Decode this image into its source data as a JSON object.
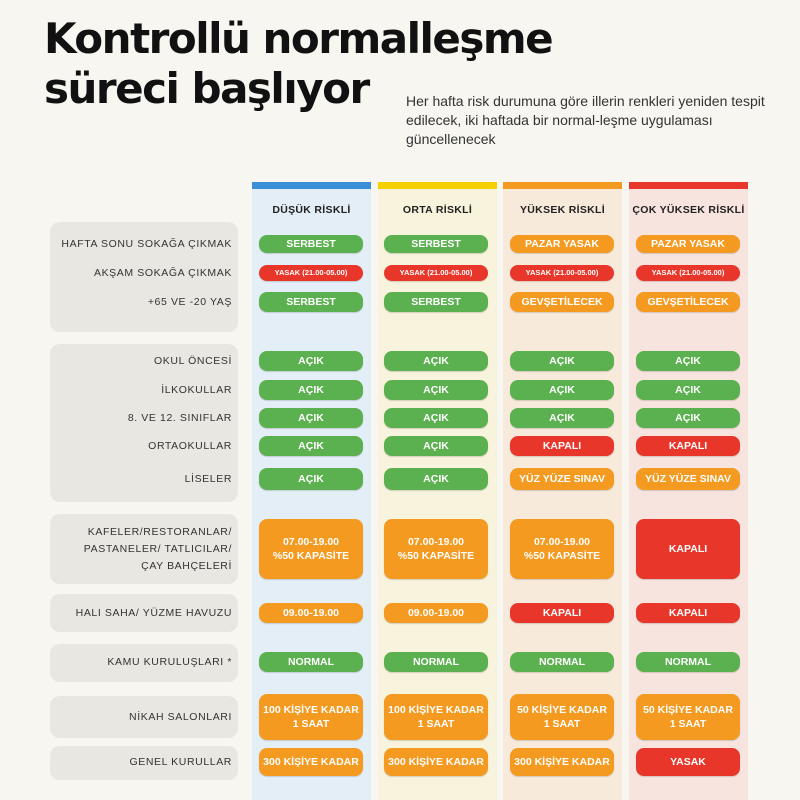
{
  "title_line1": "Kontrollü normalleşme",
  "title_line2": "süreci başlıyor",
  "subtitle": "Her hafta risk durumuna göre illerin renkleri yeniden tespit edilecek, iki haftada bir normal-leşme uygulaması güncellenecek",
  "colors": {
    "blue_bar": "#3a8fd8",
    "yellow_bar": "#f4d000",
    "orange_bar": "#f59a21",
    "red_bar": "#e8362b",
    "green_pill": "#5bb04f",
    "orange_pill": "#f59a21",
    "red_pill": "#e8362b"
  },
  "columns": [
    "DÜŞÜK RİSKLİ",
    "ORTA RİSKLİ",
    "YÜKSEK RİSKLİ",
    "ÇOK YÜKSEK RİSKLİ"
  ],
  "rows": [
    {
      "label": "HAFTA SONU SOKAĞA ÇIKMAK",
      "cells": [
        {
          "text": "SERBEST",
          "color": "green"
        },
        {
          "text": "SERBEST",
          "color": "green"
        },
        {
          "text": "PAZAR YASAK",
          "color": "orange"
        },
        {
          "text": "PAZAR YASAK",
          "color": "orange"
        }
      ]
    },
    {
      "label": "AKŞAM SOKAĞA ÇIKMAK",
      "cells": [
        {
          "text": "YASAK (21.00-05.00)",
          "color": "red"
        },
        {
          "text": "YASAK (21.00-05.00)",
          "color": "red"
        },
        {
          "text": "YASAK (21.00-05.00)",
          "color": "red"
        },
        {
          "text": "YASAK (21.00-05.00)",
          "color": "red"
        }
      ]
    },
    {
      "label": "+65 VE -20 YAŞ",
      "cells": [
        {
          "text": "SERBEST",
          "color": "green"
        },
        {
          "text": "SERBEST",
          "color": "green"
        },
        {
          "text": "GEVŞETİLECEK",
          "color": "orange"
        },
        {
          "text": "GEVŞETİLECEK",
          "color": "orange"
        }
      ]
    },
    {
      "label": "OKUL ÖNCESİ",
      "cells": [
        {
          "text": "AÇIK",
          "color": "green"
        },
        {
          "text": "AÇIK",
          "color": "green"
        },
        {
          "text": "AÇIK",
          "color": "green"
        },
        {
          "text": "AÇIK",
          "color": "green"
        }
      ]
    },
    {
      "label": "İLKOKULLAR",
      "cells": [
        {
          "text": "AÇIK",
          "color": "green"
        },
        {
          "text": "AÇIK",
          "color": "green"
        },
        {
          "text": "AÇIK",
          "color": "green"
        },
        {
          "text": "AÇIK",
          "color": "green"
        }
      ]
    },
    {
      "label": "8. VE 12. SINIFLAR",
      "cells": [
        {
          "text": "AÇIK",
          "color": "green"
        },
        {
          "text": "AÇIK",
          "color": "green"
        },
        {
          "text": "AÇIK",
          "color": "green"
        },
        {
          "text": "AÇIK",
          "color": "green"
        }
      ]
    },
    {
      "label": "ORTAOKULLAR",
      "cells": [
        {
          "text": "AÇIK",
          "color": "green"
        },
        {
          "text": "AÇIK",
          "color": "green"
        },
        {
          "text": "KAPALI",
          "color": "red"
        },
        {
          "text": "KAPALI",
          "color": "red"
        }
      ]
    },
    {
      "label": "LİSELER",
      "cells": [
        {
          "text": "AÇIK",
          "color": "green"
        },
        {
          "text": "AÇIK",
          "color": "green"
        },
        {
          "text": "YÜZ YÜZE SINAV",
          "color": "orange"
        },
        {
          "text": "YÜZ YÜZE SINAV",
          "color": "orange"
        }
      ]
    },
    {
      "label": "KAFELER/RESTORANLAR/\nPASTANELER/ TATLICILAR/\nÇAY BAHÇELERİ",
      "cells": [
        {
          "text": "07.00-19.00\n%50 KAPASİTE",
          "color": "orange"
        },
        {
          "text": "07.00-19.00\n%50 KAPASİTE",
          "color": "orange"
        },
        {
          "text": "07.00-19.00\n%50 KAPASİTE",
          "color": "orange"
        },
        {
          "text": "KAPALI",
          "color": "red"
        }
      ]
    },
    {
      "label": "HALI SAHA/ YÜZME HAVUZU",
      "cells": [
        {
          "text": "09.00-19.00",
          "color": "orange"
        },
        {
          "text": "09.00-19.00",
          "color": "orange"
        },
        {
          "text": "KAPALI",
          "color": "red"
        },
        {
          "text": "KAPALI",
          "color": "red"
        }
      ]
    },
    {
      "label": "KAMU KURULUŞLARI *",
      "cells": [
        {
          "text": "NORMAL",
          "color": "green"
        },
        {
          "text": "NORMAL",
          "color": "green"
        },
        {
          "text": "NORMAL",
          "color": "green"
        },
        {
          "text": "NORMAL",
          "color": "green"
        }
      ]
    },
    {
      "label": "NİKAH SALONLARI",
      "cells": [
        {
          "text": "100 KİŞİYE KADAR\n1 SAAT",
          "color": "orange"
        },
        {
          "text": "100 KİŞİYE KADAR\n1 SAAT",
          "color": "orange"
        },
        {
          "text": "50 KİŞİYE KADAR\n1 SAAT",
          "color": "orange"
        },
        {
          "text": "50 KİŞİYE KADAR\n1 SAAT",
          "color": "orange"
        }
      ]
    },
    {
      "label": "GENEL KURULLAR",
      "cells": [
        {
          "text": "300 KİŞİYE KADAR",
          "color": "orange"
        },
        {
          "text": "300 KİŞİYE KADAR",
          "color": "orange"
        },
        {
          "text": "300 KİŞİYE KADAR",
          "color": "orange"
        },
        {
          "text": "YASAK",
          "color": "red"
        }
      ]
    }
  ]
}
